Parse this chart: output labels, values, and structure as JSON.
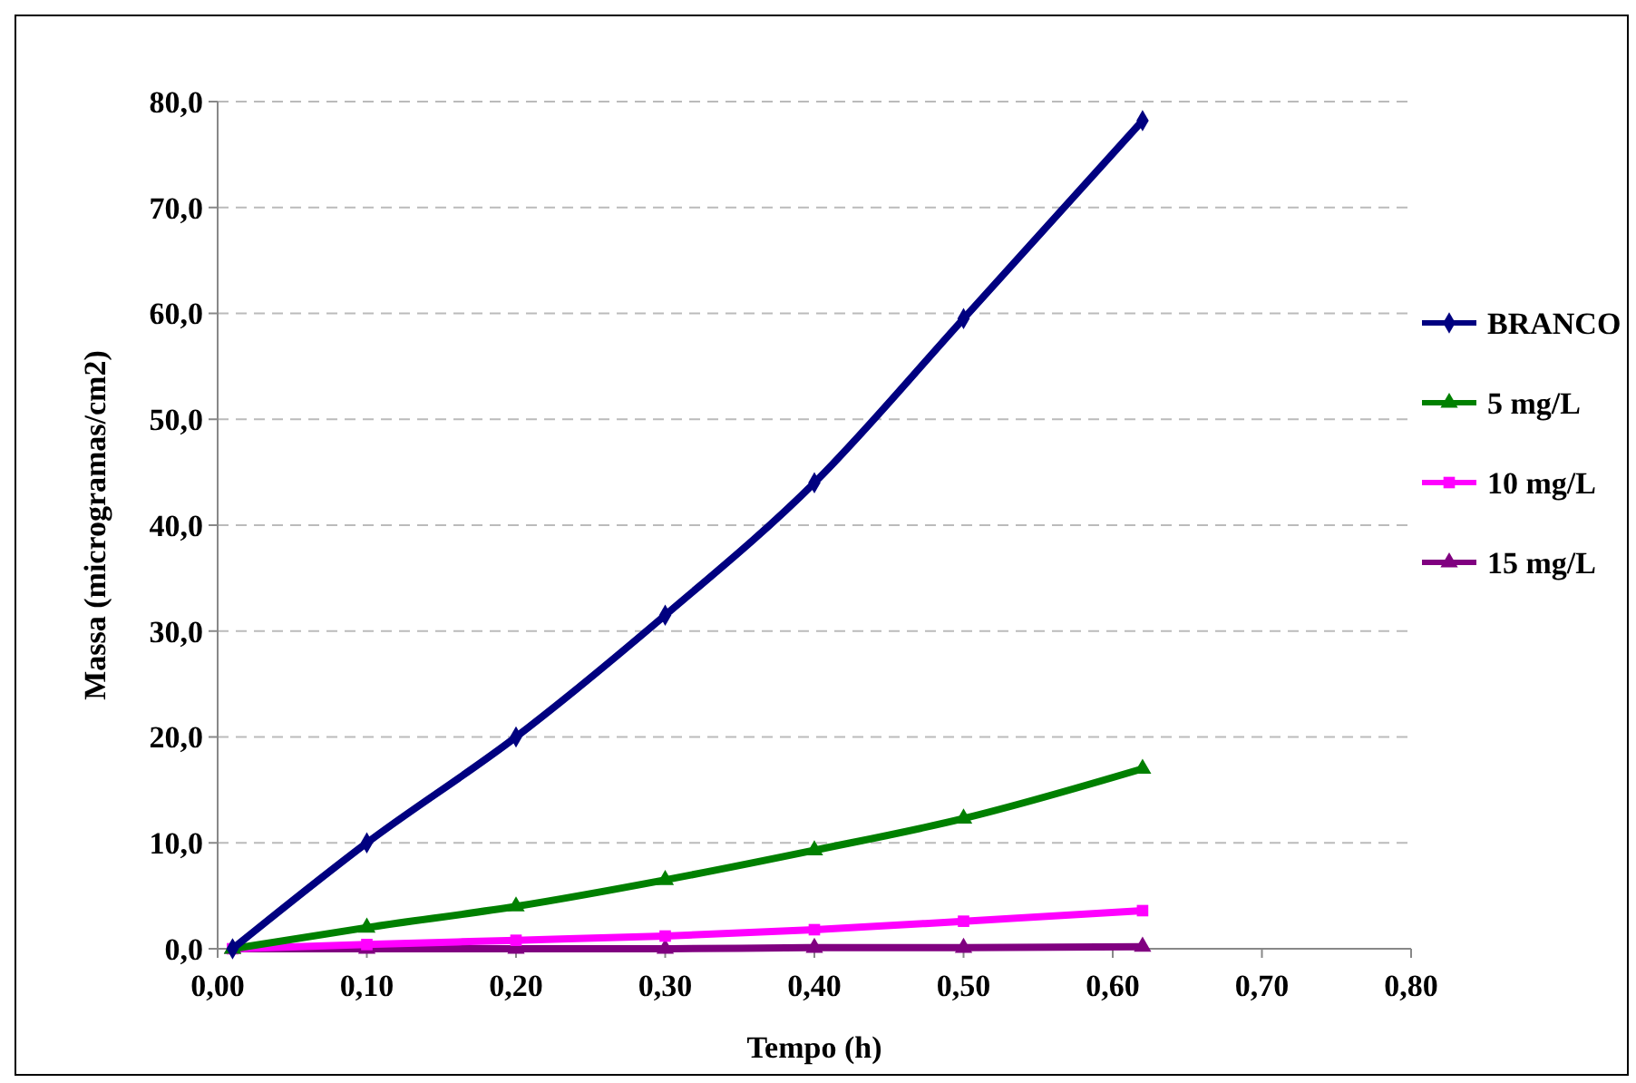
{
  "chart_data": {
    "type": "line",
    "xlabel": "Tempo (h)",
    "ylabel": "Massa (microgramas/cm2)",
    "xlim": [
      0,
      0.8
    ],
    "xticks": [
      {
        "value": 0,
        "label": "0,00"
      },
      {
        "value": 0.1,
        "label": "0,10"
      },
      {
        "value": 0.2,
        "label": "0,20"
      },
      {
        "value": 0.3,
        "label": "0,30"
      },
      {
        "value": 0.4,
        "label": "0,40"
      },
      {
        "value": 0.5,
        "label": "0,50"
      },
      {
        "value": 0.6,
        "label": "0,60"
      },
      {
        "value": 0.7,
        "label": "0,70"
      },
      {
        "value": 0.8,
        "label": "0,80"
      }
    ],
    "ylim": [
      0,
      80
    ],
    "yticks": [
      {
        "value": 0,
        "label": "0,0"
      },
      {
        "value": 10,
        "label": "10,0"
      },
      {
        "value": 20,
        "label": "20,0"
      },
      {
        "value": 30,
        "label": "30,0"
      },
      {
        "value": 40,
        "label": "40,0"
      },
      {
        "value": 50,
        "label": "50,0"
      },
      {
        "value": 60,
        "label": "60,0"
      },
      {
        "value": 70,
        "label": "70,0"
      },
      {
        "value": 80,
        "label": "80,0"
      }
    ],
    "x": [
      0.01,
      0.1,
      0.2,
      0.3,
      0.4,
      0.5,
      0.62
    ],
    "series": [
      {
        "name": "BRANCO",
        "color": "#000080",
        "marker": "diamond",
        "values": [
          0,
          10,
          20,
          31.5,
          44,
          59.5,
          78.2
        ]
      },
      {
        "name": "5 mg/L",
        "color": "#008000",
        "marker": "triangle",
        "values": [
          0,
          2,
          4,
          6.5,
          9.3,
          12.3,
          17
        ]
      },
      {
        "name": "10 mg/L",
        "color": "#ff00ff",
        "marker": "square",
        "values": [
          0,
          0.4,
          0.8,
          1.2,
          1.8,
          2.6,
          3.6
        ]
      },
      {
        "name": "15 mg/L",
        "color": "#800080",
        "marker": "triangle",
        "values": [
          0,
          0,
          0,
          0,
          0.1,
          0.1,
          0.2
        ]
      }
    ],
    "grid": "y",
    "legend": "right"
  }
}
